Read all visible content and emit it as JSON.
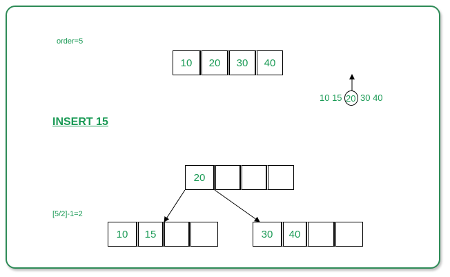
{
  "order_label": "order=5",
  "insert_label": "INSERT 15",
  "formula_label": "[5/2]-1=2",
  "root_node": {
    "keys": [
      "10",
      "20",
      "30",
      "40"
    ]
  },
  "split_sequence": {
    "before": "10 15",
    "middle": "20",
    "after": "30 40"
  },
  "result": {
    "parent": {
      "keys": [
        "20",
        "",
        "",
        ""
      ]
    },
    "left_child": {
      "keys": [
        "10",
        "15",
        "",
        ""
      ]
    },
    "right_child": {
      "keys": [
        "30",
        "40",
        "",
        ""
      ]
    }
  },
  "colors": {
    "text": "#1a9a55",
    "border": "#2e8b57",
    "line": "#000000"
  }
}
